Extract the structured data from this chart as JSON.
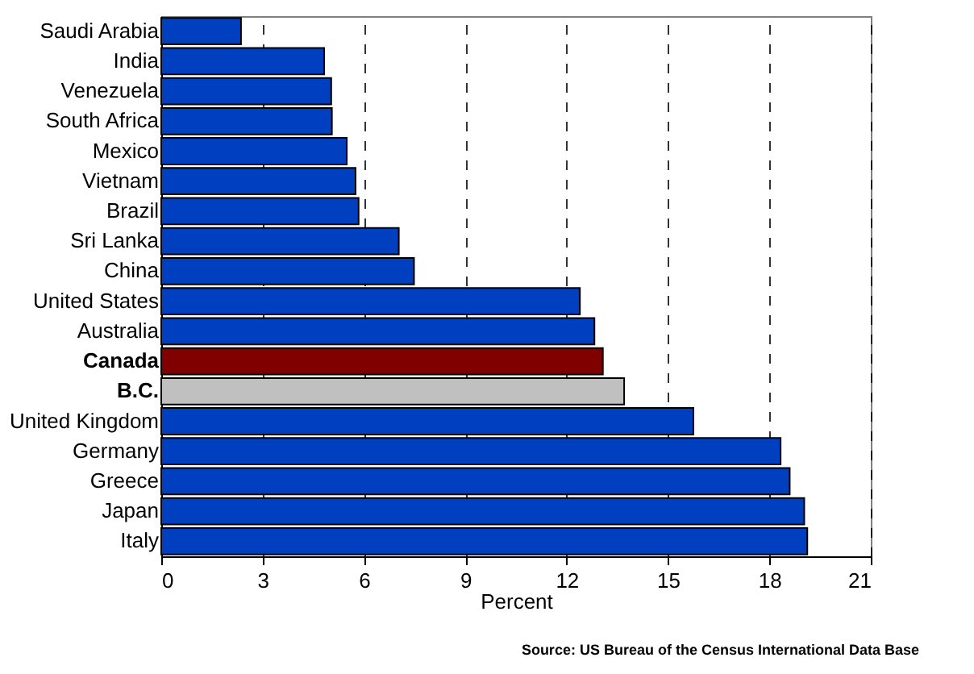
{
  "chart_data": {
    "type": "bar",
    "orientation": "horizontal",
    "xlabel": "Percent",
    "categories": [
      "Saudi Arabia",
      "India",
      "Venezuela",
      "South Africa",
      "Mexico",
      "Vietnam",
      "Brazil",
      "Sri Lanka",
      "China",
      "United States",
      "Australia",
      "Canada",
      "B.C.",
      "United Kingdom",
      "Germany",
      "Greece",
      "Japan",
      "Italy"
    ],
    "values": [
      2.36,
      4.82,
      5.03,
      5.05,
      5.49,
      5.75,
      5.84,
      7.03,
      7.48,
      12.39,
      12.82,
      13.07,
      13.7,
      15.75,
      18.33,
      18.6,
      19.03,
      19.12
    ],
    "colors": [
      "#0040c0",
      "#0040c0",
      "#0040c0",
      "#0040c0",
      "#0040c0",
      "#0040c0",
      "#0040c0",
      "#0040c0",
      "#0040c0",
      "#0040c0",
      "#0040c0",
      "#800000",
      "#c0c0c0",
      "#0040c0",
      "#0040c0",
      "#0040c0",
      "#0040c0",
      "#0040c0"
    ],
    "xlim": [
      0,
      21
    ],
    "xticks": [
      0,
      3,
      6,
      9,
      12,
      15,
      18,
      21
    ],
    "grid": "x",
    "annotations": [
      "Source:  US Bureau of the Census International Data Base"
    ]
  }
}
